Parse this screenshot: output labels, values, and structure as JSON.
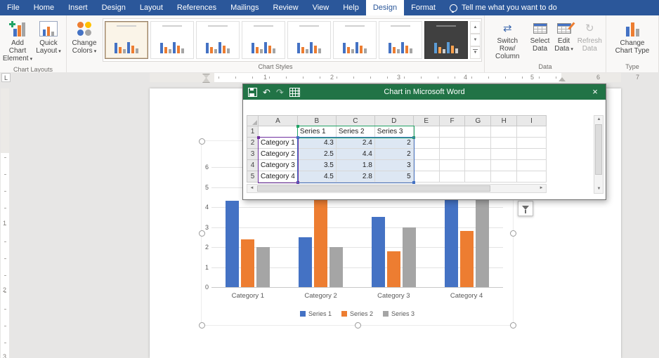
{
  "tabs": [
    "File",
    "Home",
    "Insert",
    "Design",
    "Layout",
    "References",
    "Mailings",
    "Review",
    "View",
    "Help"
  ],
  "contextual_tabs": [
    {
      "label": "Design",
      "active": true
    },
    {
      "label": "Format",
      "active": false
    }
  ],
  "tell_me": "Tell me what you want to do",
  "icons": {
    "caret": "▾",
    "close": "×",
    "undo": "↶",
    "redo": "↷",
    "switch": "⇄",
    "refresh": "↻",
    "scroll_up": "▲",
    "scroll_down": "▼",
    "scroll_left": "◄",
    "scroll_right": "►",
    "tab_stop": "L"
  },
  "ribbon": {
    "groups": [
      {
        "id": "chart_layouts",
        "label": "Chart Layouts"
      },
      {
        "id": "chart_styles",
        "label": "Chart Styles"
      },
      {
        "id": "data",
        "label": "Data"
      },
      {
        "id": "type",
        "label": "Type"
      }
    ],
    "buttons": {
      "add_chart_element": [
        "Add Chart",
        "Element"
      ],
      "quick_layout": [
        "Quick",
        "Layout"
      ],
      "change_colors": [
        "Change",
        "Colors"
      ],
      "switch_row_column": [
        "Switch Row/",
        "Column"
      ],
      "select_data": [
        "Select",
        "Data"
      ],
      "edit_data": [
        "Edit",
        "Data"
      ],
      "refresh_data": [
        "Refresh",
        "Data"
      ],
      "change_chart_type": [
        "Change",
        "Chart Type"
      ]
    }
  },
  "ruler": {
    "h_numbers": [
      "1",
      "2",
      "3",
      "4",
      "5",
      "6",
      "7"
    ],
    "v_numbers": [
      "1",
      "2",
      "3"
    ]
  },
  "data_window": {
    "title": "Chart in Microsoft Word",
    "columns": [
      "A",
      "B",
      "C",
      "D",
      "E",
      "F",
      "G",
      "H",
      "I"
    ],
    "row_numbers": [
      "1",
      "2",
      "3",
      "4",
      "5"
    ],
    "cells": [
      [
        "",
        "Series 1",
        "Series 2",
        "Series 3",
        "",
        "",
        "",
        "",
        ""
      ],
      [
        "Category 1",
        "4.3",
        "2.4",
        "2",
        "",
        "",
        "",
        "",
        ""
      ],
      [
        "Category 2",
        "2.5",
        "4.4",
        "2",
        "",
        "",
        "",
        "",
        ""
      ],
      [
        "Category 3",
        "3.5",
        "1.8",
        "3",
        "",
        "",
        "",
        "",
        ""
      ],
      [
        "Category 4",
        "4.5",
        "2.8",
        "5",
        "",
        "",
        "",
        "",
        ""
      ]
    ],
    "selection_colors": {
      "series_names": "#21a366",
      "categories": "#7030a0",
      "values": "#4472c4",
      "values_fill": "#dde7f3"
    }
  },
  "chart_data": {
    "type": "bar",
    "title": "",
    "categories": [
      "Category 1",
      "Category 2",
      "Category 3",
      "Category 4"
    ],
    "series": [
      {
        "name": "Series 1",
        "color": "#4472c4",
        "values": [
          4.3,
          2.5,
          3.5,
          4.5
        ]
      },
      {
        "name": "Series 2",
        "color": "#ed7d31",
        "values": [
          2.4,
          4.4,
          1.8,
          2.8
        ]
      },
      {
        "name": "Series 3",
        "color": "#a5a5a5",
        "values": [
          2,
          2,
          3,
          5
        ]
      }
    ],
    "ylim": [
      0,
      6
    ],
    "yticks": [
      0,
      1,
      2,
      3,
      4,
      5,
      6
    ],
    "grid": true,
    "legend_position": "bottom"
  },
  "colors": {
    "accent_blue": "#2b579a",
    "excel_green": "#217346"
  }
}
